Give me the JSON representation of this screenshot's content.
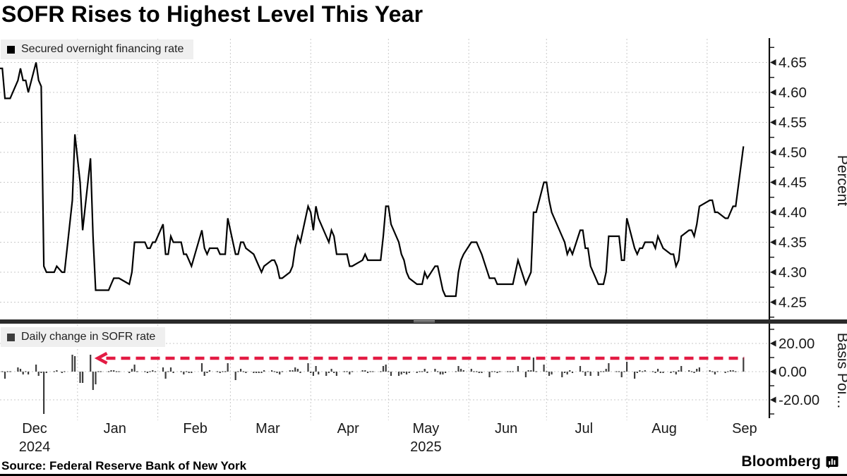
{
  "title": "SOFR Rises to Highest Level This Year",
  "source": "Source: Federal Reserve Bank of New York",
  "brand": {
    "name": "Bloomberg"
  },
  "chart_data": {
    "type": "line+bar",
    "panels": [
      {
        "id": "rate",
        "kind": "line",
        "legend": "Secured overnight financing rate",
        "axis_label": "Percent",
        "yticks": [
          "4.65",
          "4.60",
          "4.55",
          "4.50",
          "4.45",
          "4.40",
          "4.35",
          "4.30",
          "4.25"
        ],
        "ylim": [
          4.22,
          4.69
        ],
        "line_color": "#000000"
      },
      {
        "id": "daily_change",
        "kind": "bar",
        "legend": "Daily change in SOFR rate",
        "axis_label": "Basis Poi…",
        "yticks": [
          "20.00",
          "0.00",
          "-20.00"
        ],
        "ylim": [
          -33,
          33
        ],
        "bar_color": "#3d3d3d",
        "note": "bars are the day-over-day change of the SOFR series, in basis points"
      }
    ],
    "x_axis": {
      "range": [
        "2024-12-01",
        "2025-09-25"
      ],
      "months": [
        {
          "label": "Dec",
          "start": "2024-12-01",
          "year_label": "2024"
        },
        {
          "label": "Jan",
          "start": "2025-01-01"
        },
        {
          "label": "Feb",
          "start": "2025-02-01"
        },
        {
          "label": "Mar",
          "start": "2025-03-01"
        },
        {
          "label": "Apr",
          "start": "2025-04-01"
        },
        {
          "label": "May",
          "start": "2025-05-01",
          "year_label": "2025"
        },
        {
          "label": "Jun",
          "start": "2025-06-01"
        },
        {
          "label": "Jul",
          "start": "2025-07-01"
        },
        {
          "label": "Aug",
          "start": "2025-08-01"
        },
        {
          "label": "Sep",
          "start": "2025-09-01"
        }
      ]
    },
    "annotation": {
      "type": "horizontal-dashed-arrow-left",
      "level_bp": 9.5,
      "from": "2025-01-08",
      "to": "2025-09-15",
      "color": "#e31b43"
    },
    "series": {
      "name": "Secured overnight financing rate",
      "unit": "percent",
      "points": [
        [
          "2024-12-02",
          4.64
        ],
        [
          "2024-12-03",
          4.64
        ],
        [
          "2024-12-04",
          4.59
        ],
        [
          "2024-12-05",
          4.59
        ],
        [
          "2024-12-06",
          4.59
        ],
        [
          "2024-12-09",
          4.62
        ],
        [
          "2024-12-10",
          4.64
        ],
        [
          "2024-12-11",
          4.62
        ],
        [
          "2024-12-12",
          4.62
        ],
        [
          "2024-12-13",
          4.6
        ],
        [
          "2024-12-16",
          4.65
        ],
        [
          "2024-12-17",
          4.62
        ],
        [
          "2024-12-18",
          4.61
        ],
        [
          "2024-12-19",
          4.31
        ],
        [
          "2024-12-20",
          4.3
        ],
        [
          "2024-12-23",
          4.3
        ],
        [
          "2024-12-24",
          4.31
        ],
        [
          "2024-12-26",
          4.3
        ],
        [
          "2024-12-27",
          4.3
        ],
        [
          "2024-12-30",
          4.42
        ],
        [
          "2024-12-31",
          4.53
        ],
        [
          "2025-01-02",
          4.45
        ],
        [
          "2025-01-03",
          4.37
        ],
        [
          "2025-01-06",
          4.49
        ],
        [
          "2025-01-07",
          4.36
        ],
        [
          "2025-01-08",
          4.27
        ],
        [
          "2025-01-09",
          4.27
        ],
        [
          "2025-01-10",
          4.27
        ],
        [
          "2025-01-13",
          4.27
        ],
        [
          "2025-01-14",
          4.28
        ],
        [
          "2025-01-15",
          4.29
        ],
        [
          "2025-01-16",
          4.29
        ],
        [
          "2025-01-17",
          4.29
        ],
        [
          "2025-01-21",
          4.28
        ],
        [
          "2025-01-22",
          4.3
        ],
        [
          "2025-01-23",
          4.35
        ],
        [
          "2025-01-24",
          4.35
        ],
        [
          "2025-01-27",
          4.35
        ],
        [
          "2025-01-28",
          4.34
        ],
        [
          "2025-01-29",
          4.34
        ],
        [
          "2025-01-30",
          4.35
        ],
        [
          "2025-01-31",
          4.35
        ],
        [
          "2025-02-03",
          4.38
        ],
        [
          "2025-02-04",
          4.33
        ],
        [
          "2025-02-05",
          4.33
        ],
        [
          "2025-02-06",
          4.36
        ],
        [
          "2025-02-07",
          4.35
        ],
        [
          "2025-02-10",
          4.35
        ],
        [
          "2025-02-11",
          4.33
        ],
        [
          "2025-02-12",
          4.33
        ],
        [
          "2025-02-13",
          4.32
        ],
        [
          "2025-02-14",
          4.31
        ],
        [
          "2025-02-18",
          4.37
        ],
        [
          "2025-02-19",
          4.34
        ],
        [
          "2025-02-20",
          4.33
        ],
        [
          "2025-02-21",
          4.34
        ],
        [
          "2025-02-24",
          4.34
        ],
        [
          "2025-02-25",
          4.33
        ],
        [
          "2025-02-26",
          4.33
        ],
        [
          "2025-02-27",
          4.33
        ],
        [
          "2025-02-28",
          4.39
        ],
        [
          "2025-03-03",
          4.33
        ],
        [
          "2025-03-04",
          4.33
        ],
        [
          "2025-03-05",
          4.35
        ],
        [
          "2025-03-06",
          4.35
        ],
        [
          "2025-03-07",
          4.34
        ],
        [
          "2025-03-10",
          4.33
        ],
        [
          "2025-03-11",
          4.32
        ],
        [
          "2025-03-12",
          4.31
        ],
        [
          "2025-03-13",
          4.3
        ],
        [
          "2025-03-14",
          4.31
        ],
        [
          "2025-03-17",
          4.32
        ],
        [
          "2025-03-18",
          4.32
        ],
        [
          "2025-03-19",
          4.31
        ],
        [
          "2025-03-20",
          4.29
        ],
        [
          "2025-03-21",
          4.29
        ],
        [
          "2025-03-24",
          4.3
        ],
        [
          "2025-03-25",
          4.31
        ],
        [
          "2025-03-26",
          4.34
        ],
        [
          "2025-03-27",
          4.36
        ],
        [
          "2025-03-28",
          4.35
        ],
        [
          "2025-03-31",
          4.41
        ],
        [
          "2025-04-01",
          4.4
        ],
        [
          "2025-04-02",
          4.37
        ],
        [
          "2025-04-03",
          4.41
        ],
        [
          "2025-04-04",
          4.39
        ],
        [
          "2025-04-07",
          4.36
        ],
        [
          "2025-04-08",
          4.35
        ],
        [
          "2025-04-09",
          4.37
        ],
        [
          "2025-04-10",
          4.36
        ],
        [
          "2025-04-11",
          4.33
        ],
        [
          "2025-04-14",
          4.33
        ],
        [
          "2025-04-15",
          4.33
        ],
        [
          "2025-04-16",
          4.31
        ],
        [
          "2025-04-17",
          4.31
        ],
        [
          "2025-04-21",
          4.32
        ],
        [
          "2025-04-22",
          4.33
        ],
        [
          "2025-04-23",
          4.32
        ],
        [
          "2025-04-24",
          4.32
        ],
        [
          "2025-04-25",
          4.32
        ],
        [
          "2025-04-28",
          4.32
        ],
        [
          "2025-04-29",
          4.36
        ],
        [
          "2025-04-30",
          4.41
        ],
        [
          "2025-05-01",
          4.41
        ],
        [
          "2025-05-02",
          4.38
        ],
        [
          "2025-05-05",
          4.35
        ],
        [
          "2025-05-06",
          4.33
        ],
        [
          "2025-05-07",
          4.32
        ],
        [
          "2025-05-08",
          4.3
        ],
        [
          "2025-05-09",
          4.29
        ],
        [
          "2025-05-12",
          4.28
        ],
        [
          "2025-05-13",
          4.28
        ],
        [
          "2025-05-14",
          4.28
        ],
        [
          "2025-05-15",
          4.3
        ],
        [
          "2025-05-16",
          4.29
        ],
        [
          "2025-05-19",
          4.31
        ],
        [
          "2025-05-20",
          4.31
        ],
        [
          "2025-05-21",
          4.29
        ],
        [
          "2025-05-22",
          4.27
        ],
        [
          "2025-05-23",
          4.26
        ],
        [
          "2025-05-27",
          4.26
        ],
        [
          "2025-05-28",
          4.3
        ],
        [
          "2025-05-29",
          4.32
        ],
        [
          "2025-05-30",
          4.33
        ],
        [
          "2025-06-02",
          4.35
        ],
        [
          "2025-06-03",
          4.35
        ],
        [
          "2025-06-04",
          4.35
        ],
        [
          "2025-06-05",
          4.34
        ],
        [
          "2025-06-06",
          4.33
        ],
        [
          "2025-06-09",
          4.29
        ],
        [
          "2025-06-10",
          4.29
        ],
        [
          "2025-06-11",
          4.29
        ],
        [
          "2025-06-12",
          4.28
        ],
        [
          "2025-06-13",
          4.28
        ],
        [
          "2025-06-16",
          4.28
        ],
        [
          "2025-06-17",
          4.28
        ],
        [
          "2025-06-18",
          4.28
        ],
        [
          "2025-06-20",
          4.32
        ],
        [
          "2025-06-23",
          4.28
        ],
        [
          "2025-06-24",
          4.29
        ],
        [
          "2025-06-25",
          4.3
        ],
        [
          "2025-06-26",
          4.4
        ],
        [
          "2025-06-27",
          4.4
        ],
        [
          "2025-06-30",
          4.45
        ],
        [
          "2025-07-01",
          4.45
        ],
        [
          "2025-07-02",
          4.42
        ],
        [
          "2025-07-03",
          4.4
        ],
        [
          "2025-07-07",
          4.36
        ],
        [
          "2025-07-08",
          4.35
        ],
        [
          "2025-07-09",
          4.33
        ],
        [
          "2025-07-10",
          4.34
        ],
        [
          "2025-07-11",
          4.33
        ],
        [
          "2025-07-14",
          4.37
        ],
        [
          "2025-07-15",
          4.37
        ],
        [
          "2025-07-16",
          4.34
        ],
        [
          "2025-07-17",
          4.34
        ],
        [
          "2025-07-18",
          4.31
        ],
        [
          "2025-07-21",
          4.28
        ],
        [
          "2025-07-22",
          4.28
        ],
        [
          "2025-07-23",
          4.28
        ],
        [
          "2025-07-24",
          4.3
        ],
        [
          "2025-07-25",
          4.36
        ],
        [
          "2025-07-28",
          4.36
        ],
        [
          "2025-07-29",
          4.36
        ],
        [
          "2025-07-30",
          4.32
        ],
        [
          "2025-07-31",
          4.32
        ],
        [
          "2025-08-01",
          4.39
        ],
        [
          "2025-08-04",
          4.34
        ],
        [
          "2025-08-05",
          4.33
        ],
        [
          "2025-08-06",
          4.34
        ],
        [
          "2025-08-07",
          4.34
        ],
        [
          "2025-08-08",
          4.35
        ],
        [
          "2025-08-11",
          4.35
        ],
        [
          "2025-08-12",
          4.34
        ],
        [
          "2025-08-13",
          4.36
        ],
        [
          "2025-08-14",
          4.35
        ],
        [
          "2025-08-15",
          4.34
        ],
        [
          "2025-08-18",
          4.33
        ],
        [
          "2025-08-19",
          4.33
        ],
        [
          "2025-08-20",
          4.31
        ],
        [
          "2025-08-21",
          4.32
        ],
        [
          "2025-08-22",
          4.36
        ],
        [
          "2025-08-25",
          4.37
        ],
        [
          "2025-08-26",
          4.37
        ],
        [
          "2025-08-27",
          4.36
        ],
        [
          "2025-08-28",
          4.38
        ],
        [
          "2025-08-29",
          4.41
        ],
        [
          "2025-09-02",
          4.42
        ],
        [
          "2025-09-03",
          4.42
        ],
        [
          "2025-09-04",
          4.4
        ],
        [
          "2025-09-05",
          4.4
        ],
        [
          "2025-09-08",
          4.39
        ],
        [
          "2025-09-09",
          4.39
        ],
        [
          "2025-09-10",
          4.4
        ],
        [
          "2025-09-11",
          4.41
        ],
        [
          "2025-09-12",
          4.41
        ],
        [
          "2025-09-15",
          4.51
        ]
      ]
    }
  }
}
